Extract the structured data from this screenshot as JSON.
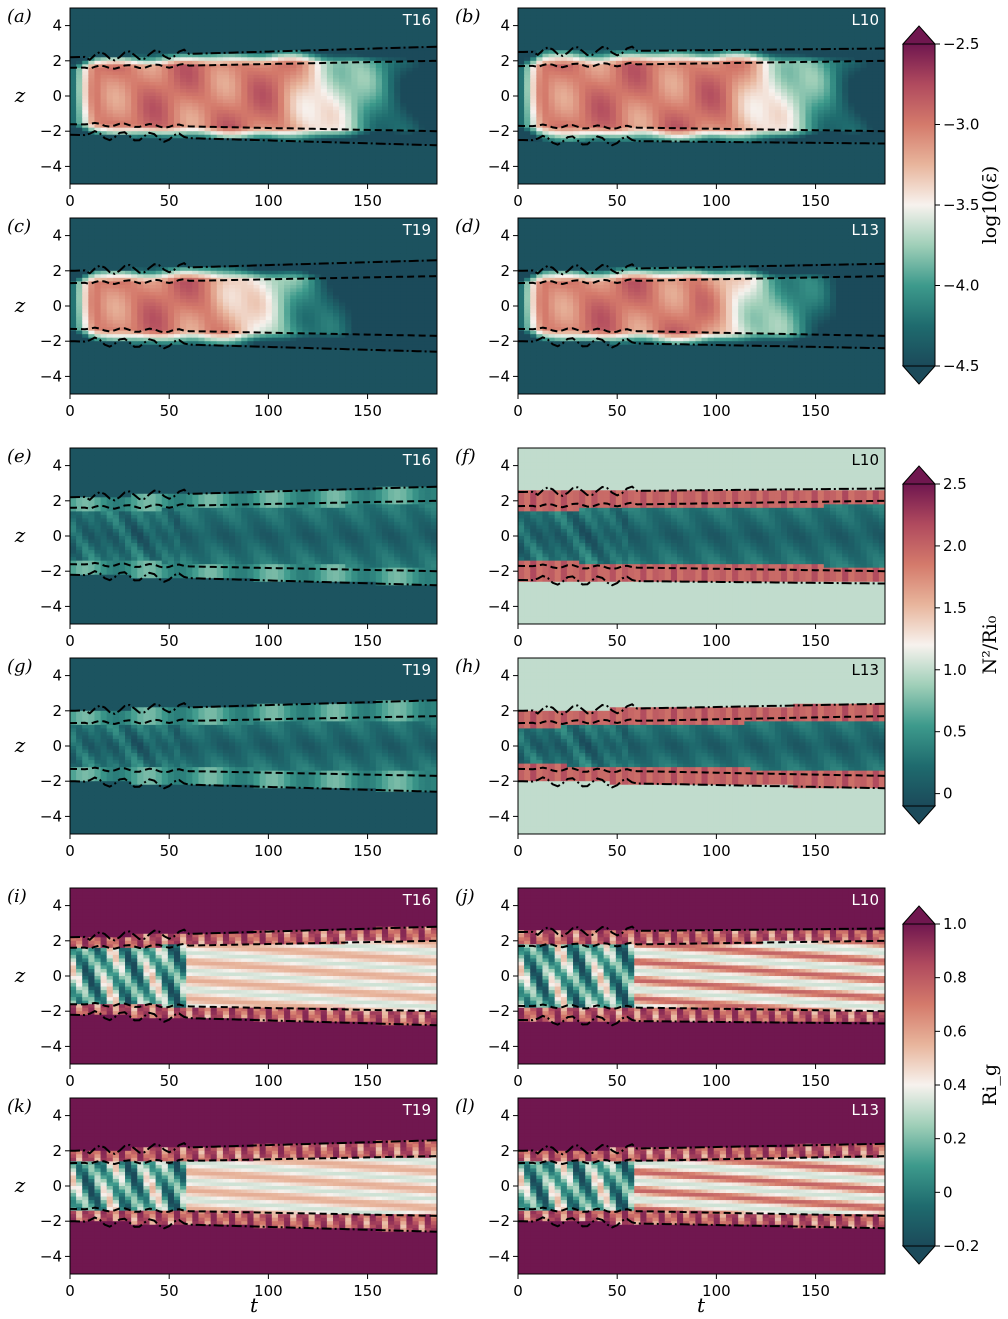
{
  "chart_data": {
    "type": "heatmap",
    "xlabel": "t",
    "ylabel": "z",
    "xlim": [
      0,
      185
    ],
    "ylim": [
      -5,
      5
    ],
    "x_ticks": [
      "0",
      "50",
      "100",
      "150"
    ],
    "y_ticks": [
      "4",
      "2",
      "0",
      "−2",
      "−4"
    ],
    "colormap": [
      "#1b4a5a",
      "#1f6b6e",
      "#3d9a8c",
      "#9fcfb8",
      "#f7f2ee",
      "#e8b59c",
      "#d47a6b",
      "#b04a5e",
      "#70174f"
    ],
    "rows": [
      {
        "quantity": "log10(epsilon)",
        "colorbar": {
          "label": "log10(ε̄)",
          "ticks": [
            "−2.5",
            "−3.0",
            "−3.5",
            "−4.0",
            "−4.5"
          ],
          "range": [
            -4.5,
            -2.5
          ],
          "extend": "both"
        },
        "panels": [
          {
            "label": "(a)",
            "case": "T16",
            "decay_end": 175,
            "x_label_hidden": true
          },
          {
            "label": "(b)",
            "case": "L10",
            "decay_end": 175,
            "x_label_hidden": true
          },
          {
            "label": "(c)",
            "case": "T19",
            "decay_end": 140,
            "x_label_hidden": true
          },
          {
            "label": "(d)",
            "case": "L13",
            "decay_end": 160,
            "x_label_hidden": true
          }
        ]
      },
      {
        "quantity": "N^2/Ri_0",
        "colorbar": {
          "label": "N²/Ri₀",
          "ticks": [
            "2.5",
            "2.0",
            "1.5",
            "1.0",
            "0.5",
            "0"
          ],
          "range": [
            -0.1,
            2.5
          ],
          "extend": "both"
        },
        "panels": [
          {
            "label": "(e)",
            "case": "T16",
            "background_value": 0.0
          },
          {
            "label": "(f)",
            "case": "L10",
            "background_value": 1.0
          },
          {
            "label": "(g)",
            "case": "T19",
            "background_value": 0.0
          },
          {
            "label": "(h)",
            "case": "L13",
            "background_value": 1.0
          }
        ]
      },
      {
        "quantity": "Ri_g",
        "colorbar": {
          "label": "Ri_g",
          "ticks": [
            "1.0",
            "0.8",
            "0.6",
            "0.4",
            "0.2",
            "0",
            "−0.2"
          ],
          "range": [
            -0.2,
            1.0
          ],
          "extend": "both"
        },
        "panels": [
          {
            "label": "(i)",
            "case": "T16"
          },
          {
            "label": "(j)",
            "case": "L10"
          },
          {
            "label": "(k)",
            "case": "T19"
          },
          {
            "label": "(l)",
            "case": "L13"
          }
        ]
      }
    ],
    "boundaries": {
      "dashed": {
        "T16": [
          1.6,
          2.0
        ],
        "L10": [
          1.7,
          2.0
        ],
        "T19": [
          1.3,
          1.7
        ],
        "L13": [
          1.3,
          1.7
        ]
      },
      "dashdot": {
        "T16": [
          2.2,
          2.8
        ],
        "L10": [
          2.5,
          2.7
        ],
        "T19": [
          2.0,
          2.6
        ],
        "L13": [
          2.0,
          2.4
        ]
      }
    }
  }
}
